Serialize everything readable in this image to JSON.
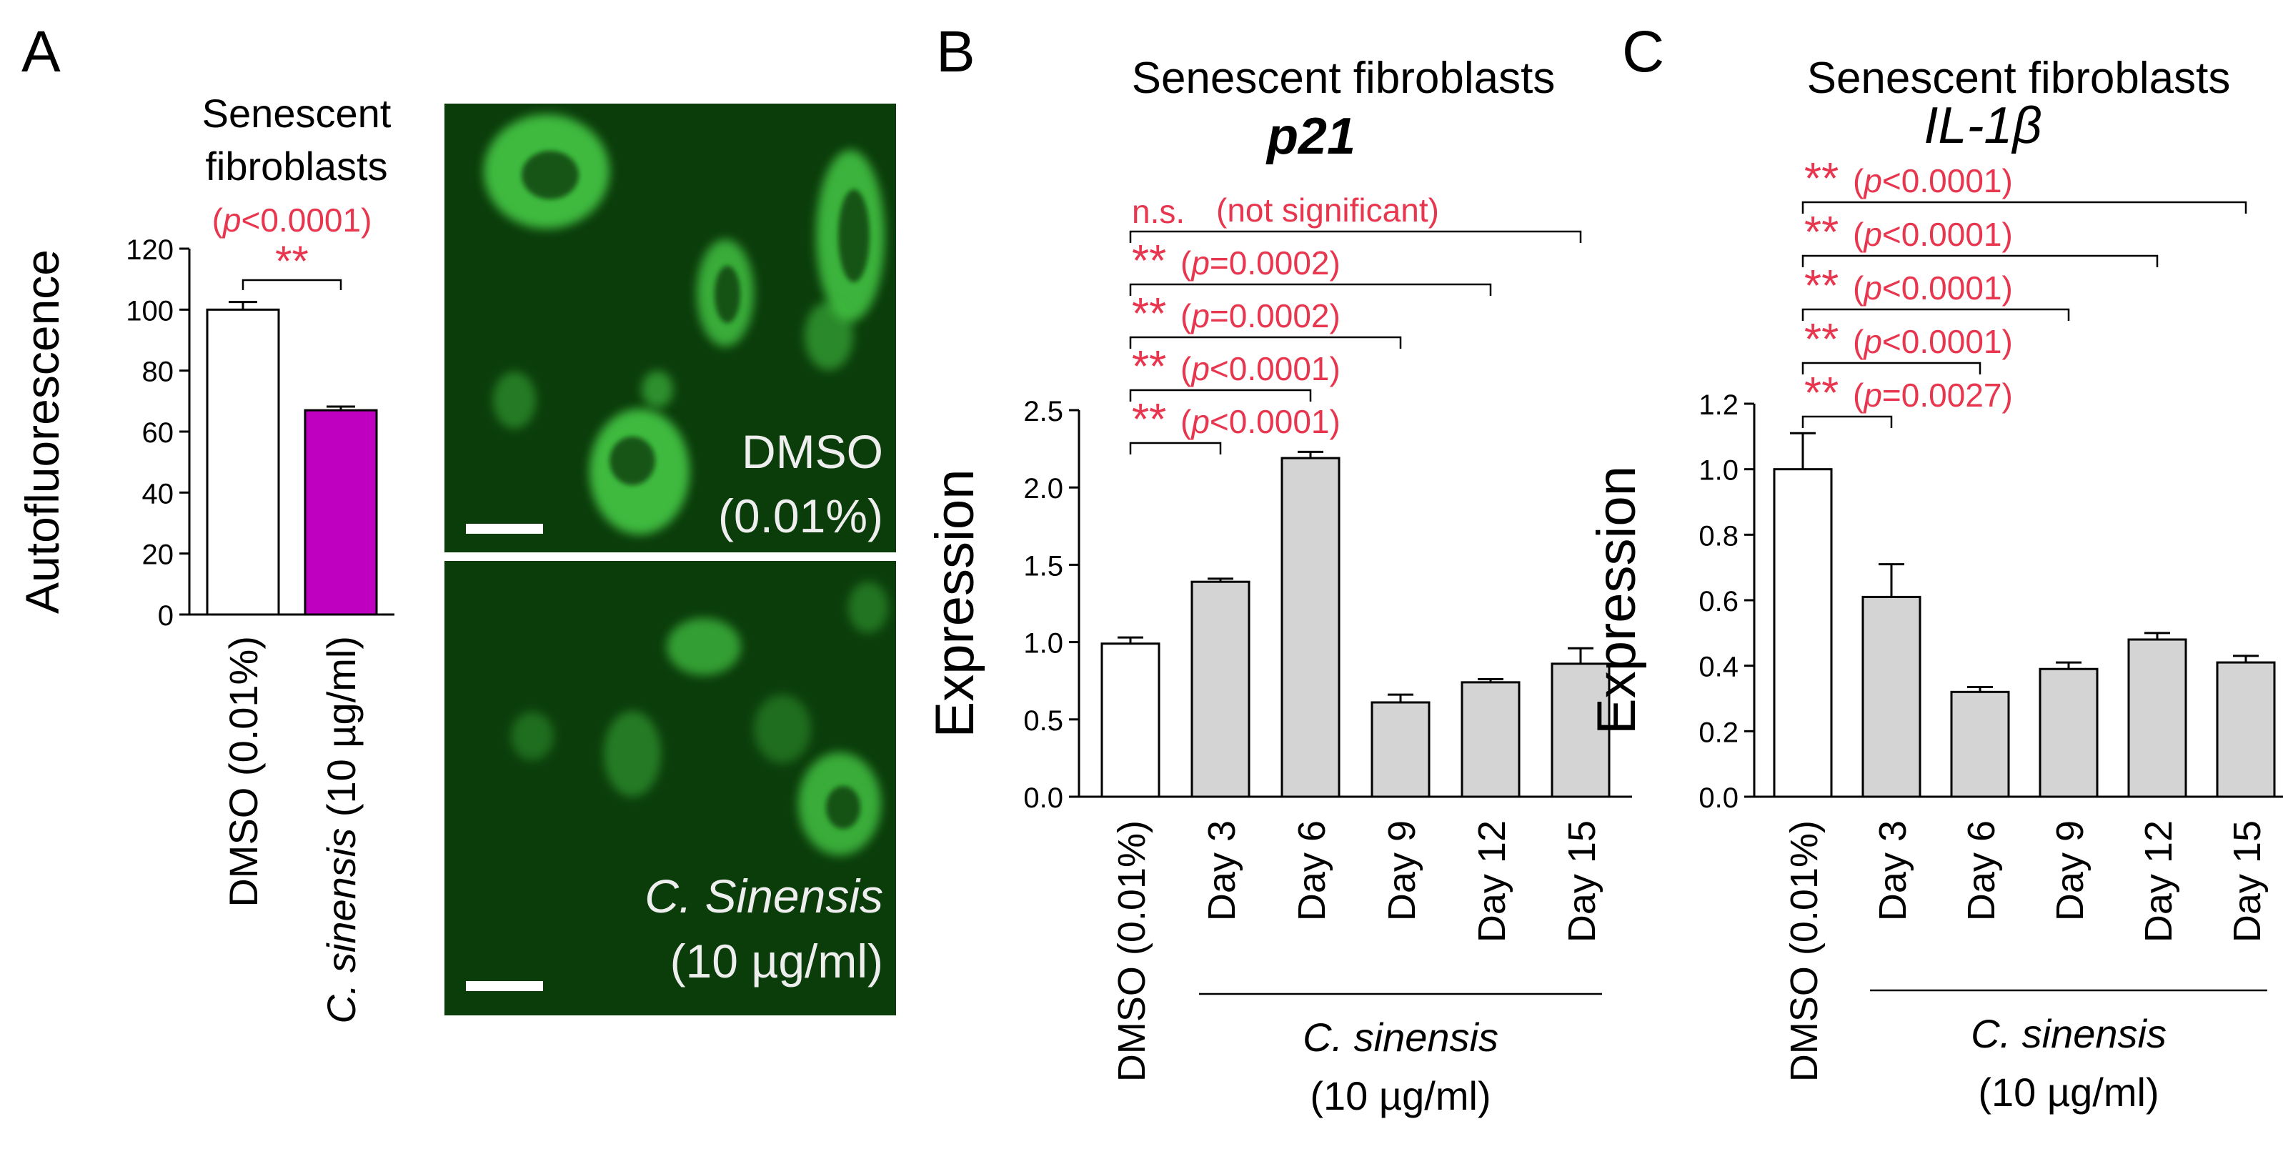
{
  "colors": {
    "axis": "#000000",
    "red": "#e8364f",
    "white_bar": "#ffffff",
    "magenta_bar": "#c000c0",
    "gray_bar": "#d4d4d4",
    "micro_bg": "#0b3d0b",
    "cell_green": "#45c845"
  },
  "panels": {
    "A": {
      "letter": "A",
      "title_lines": [
        "Senescent",
        "fibroblasts"
      ],
      "micro_top_label": [
        "DMSO",
        "(0.01%)"
      ],
      "micro_bottom_label": [
        "C. Sinensis",
        "(10 µg/ml)"
      ]
    },
    "B": {
      "letter": "B",
      "title": "Senescent fibroblasts",
      "gene": "p21",
      "group_label": [
        "C. sinensis",
        "(10 µg/ml)"
      ]
    },
    "C": {
      "letter": "C",
      "title": "Senescent fibroblasts",
      "gene": "IL-1β",
      "group_label": [
        "C. sinensis",
        "(10 µg/ml)"
      ]
    }
  },
  "chart_data": [
    {
      "panel": "A",
      "type": "bar",
      "categories": [
        "DMSO (0.01%)",
        "C. sinensis (10 µg/ml)"
      ],
      "values": [
        100,
        67
      ],
      "errors": [
        2.5,
        1.2
      ],
      "bar_colors": [
        "#ffffff",
        "#c000c0"
      ],
      "ylabel": "Autofluorescence",
      "ylim": [
        0,
        120
      ],
      "yticks": [
        "0",
        "20",
        "40",
        "60",
        "80",
        "100",
        "120"
      ],
      "annotations": [
        {
          "stars": "**",
          "p": "(p<0.0001)",
          "from": 0,
          "to": 1
        }
      ]
    },
    {
      "panel": "B",
      "type": "bar",
      "categories": [
        "DMSO (0.01%)",
        "Day 3",
        "Day 6",
        "Day 9",
        "Day 12",
        "Day 15"
      ],
      "values": [
        0.99,
        1.39,
        2.19,
        0.61,
        0.74,
        0.86
      ],
      "errors": [
        0.04,
        0.02,
        0.04,
        0.05,
        0.02,
        0.1
      ],
      "bar_colors": [
        "#ffffff",
        "#d4d4d4",
        "#d4d4d4",
        "#d4d4d4",
        "#d4d4d4",
        "#d4d4d4"
      ],
      "ylabel": "Expression",
      "ylim": [
        0,
        2.5
      ],
      "yticks": [
        "0.0",
        "0.5",
        "1.0",
        "1.5",
        "2.0",
        "2.5"
      ],
      "annotations": [
        {
          "stars": "**",
          "p": "(p<0.0001)",
          "from": 0,
          "to": 1
        },
        {
          "stars": "**",
          "p": "(p<0.0001)",
          "from": 0,
          "to": 2
        },
        {
          "stars": "**",
          "p": "(p=0.0002)",
          "from": 0,
          "to": 3
        },
        {
          "stars": "**",
          "p": "(p=0.0002)",
          "from": 0,
          "to": 4
        },
        {
          "stars": "n.s.",
          "p": "(not significant)",
          "from": 0,
          "to": 5
        }
      ]
    },
    {
      "panel": "C",
      "type": "bar",
      "categories": [
        "DMSO (0.01%)",
        "Day 3",
        "Day 6",
        "Day 9",
        "Day 12",
        "Day 15"
      ],
      "values": [
        1.0,
        0.61,
        0.32,
        0.39,
        0.48,
        0.41
      ],
      "errors": [
        0.11,
        0.1,
        0.015,
        0.02,
        0.02,
        0.02
      ],
      "bar_colors": [
        "#ffffff",
        "#d4d4d4",
        "#d4d4d4",
        "#d4d4d4",
        "#d4d4d4",
        "#d4d4d4"
      ],
      "ylabel": "Expression",
      "ylim": [
        0,
        1.2
      ],
      "yticks": [
        "0.0",
        "0.2",
        "0.4",
        "0.6",
        "0.8",
        "1.0",
        "1.2"
      ],
      "annotations": [
        {
          "stars": "**",
          "p": "(p=0.0027)",
          "from": 0,
          "to": 1
        },
        {
          "stars": "**",
          "p": "(p<0.0001)",
          "from": 0,
          "to": 2
        },
        {
          "stars": "**",
          "p": "(p<0.0001)",
          "from": 0,
          "to": 3
        },
        {
          "stars": "**",
          "p": "(p<0.0001)",
          "from": 0,
          "to": 4
        },
        {
          "stars": "**",
          "p": "(p<0.0001)",
          "from": 0,
          "to": 5
        }
      ]
    }
  ]
}
